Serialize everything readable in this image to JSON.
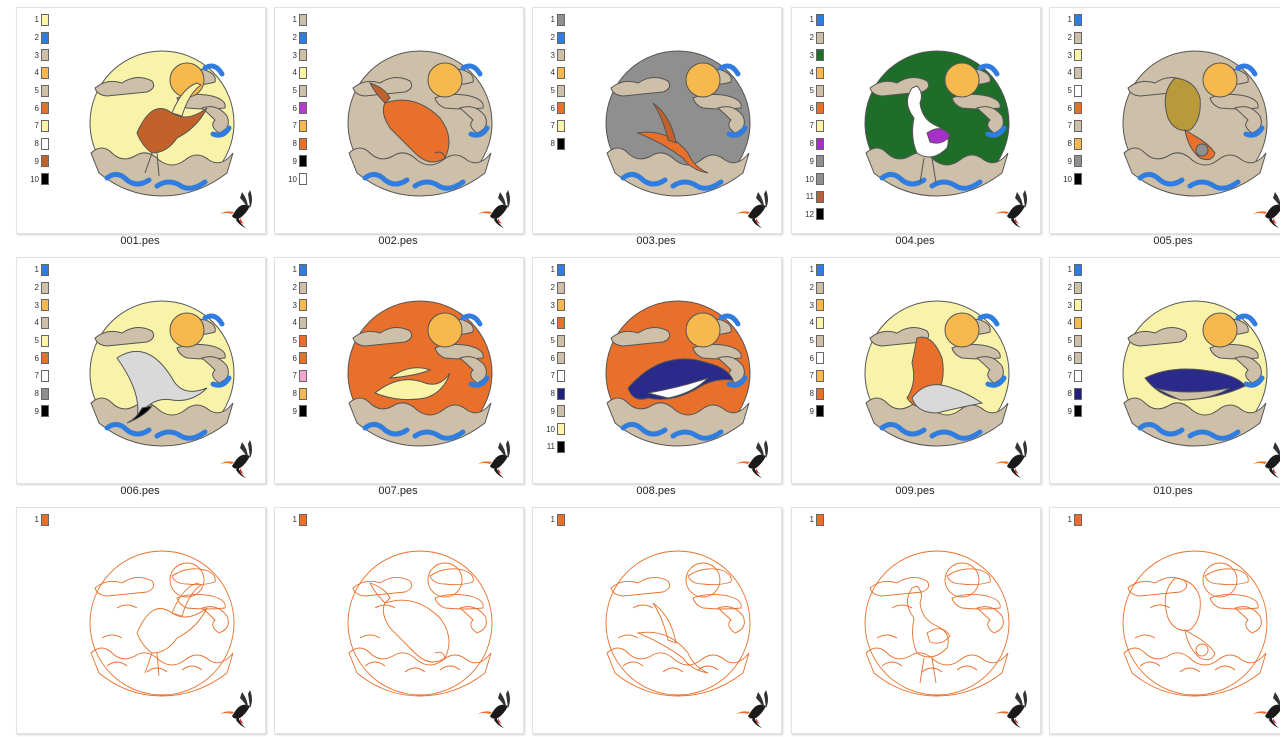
{
  "files": [
    {
      "name": "001.pes",
      "motif": "crane",
      "bg": "#f8f3a8",
      "outline": false,
      "palette": [
        {
          "n": "1",
          "c": "#fbf3a6"
        },
        {
          "n": "2",
          "c": "#2f7de0"
        },
        {
          "n": "3",
          "c": "#cdbfa8"
        },
        {
          "n": "4",
          "c": "#f7b94d"
        },
        {
          "n": "5",
          "c": "#cdbfa8"
        },
        {
          "n": "6",
          "c": "#e8702a"
        },
        {
          "n": "7",
          "c": "#fbf3a6"
        },
        {
          "n": "8",
          "c": "#ffffff"
        },
        {
          "n": "9",
          "c": "#c2612a"
        },
        {
          "n": "10",
          "c": "#000000"
        }
      ]
    },
    {
      "name": "002.pes",
      "motif": "koi",
      "bg": "#cdbfa8",
      "outline": false,
      "palette": [
        {
          "n": "1",
          "c": "#cdbfa8"
        },
        {
          "n": "2",
          "c": "#2f7de0"
        },
        {
          "n": "3",
          "c": "#cdbfa8"
        },
        {
          "n": "4",
          "c": "#fbf3a6"
        },
        {
          "n": "5",
          "c": "#cdbfa8"
        },
        {
          "n": "6",
          "c": "#b43bd6"
        },
        {
          "n": "7",
          "c": "#f7b94d"
        },
        {
          "n": "8",
          "c": "#e8702a"
        },
        {
          "n": "9",
          "c": "#000000"
        },
        {
          "n": "10",
          "c": "#ffffff"
        }
      ]
    },
    {
      "name": "003.pes",
      "motif": "swallow",
      "bg": "#8f8f8f",
      "outline": false,
      "palette": [
        {
          "n": "1",
          "c": "#8f8f8f"
        },
        {
          "n": "2",
          "c": "#2f7de0"
        },
        {
          "n": "3",
          "c": "#cdbfa8"
        },
        {
          "n": "4",
          "c": "#f7b94d"
        },
        {
          "n": "5",
          "c": "#cdbfa8"
        },
        {
          "n": "6",
          "c": "#e8702a"
        },
        {
          "n": "7",
          "c": "#fbf3a6"
        },
        {
          "n": "8",
          "c": "#000000"
        }
      ]
    },
    {
      "name": "004.pes",
      "motif": "heron",
      "bg": "#1e6e2a",
      "outline": false,
      "palette": [
        {
          "n": "1",
          "c": "#2f7de0"
        },
        {
          "n": "2",
          "c": "#cdbfa8"
        },
        {
          "n": "3",
          "c": "#1e6e2a"
        },
        {
          "n": "4",
          "c": "#f7b94d"
        },
        {
          "n": "5",
          "c": "#cdbfa8"
        },
        {
          "n": "6",
          "c": "#e8702a"
        },
        {
          "n": "7",
          "c": "#fbf3a6"
        },
        {
          "n": "8",
          "c": "#a72fc9"
        },
        {
          "n": "9",
          "c": "#8f8f8f"
        },
        {
          "n": "10",
          "c": "#8f8f8f"
        },
        {
          "n": "11",
          "c": "#b4643c"
        },
        {
          "n": "12",
          "c": "#000000"
        }
      ]
    },
    {
      "name": "005.pes",
      "motif": "goldfish",
      "bg": "#cdbfa8",
      "outline": false,
      "palette": [
        {
          "n": "1",
          "c": "#2f7de0"
        },
        {
          "n": "2",
          "c": "#cdbfa8"
        },
        {
          "n": "3",
          "c": "#fbf3a6"
        },
        {
          "n": "4",
          "c": "#cdbfa8"
        },
        {
          "n": "5",
          "c": "#ffffff"
        },
        {
          "n": "6",
          "c": "#e8702a"
        },
        {
          "n": "7",
          "c": "#cdbfa8"
        },
        {
          "n": "8",
          "c": "#f7b94d"
        },
        {
          "n": "9",
          "c": "#8f8f8f"
        },
        {
          "n": "10",
          "c": "#000000"
        }
      ]
    },
    {
      "name": "006.pes",
      "motif": "crane-flying",
      "bg": "#f8f3a8",
      "outline": false,
      "palette": [
        {
          "n": "1",
          "c": "#2f7de0"
        },
        {
          "n": "2",
          "c": "#cdbfa8"
        },
        {
          "n": "3",
          "c": "#f7b94d"
        },
        {
          "n": "4",
          "c": "#cdbfa8"
        },
        {
          "n": "5",
          "c": "#fbf3a6"
        },
        {
          "n": "6",
          "c": "#e8702a"
        },
        {
          "n": "7",
          "c": "#ffffff"
        },
        {
          "n": "8",
          "c": "#8f8f8f"
        },
        {
          "n": "9",
          "c": "#000000"
        }
      ]
    },
    {
      "name": "007.pes",
      "motif": "egrets",
      "bg": "#e8702a",
      "outline": false,
      "palette": [
        {
          "n": "1",
          "c": "#2f7de0"
        },
        {
          "n": "2",
          "c": "#cdbfa8"
        },
        {
          "n": "3",
          "c": "#f7b94d"
        },
        {
          "n": "4",
          "c": "#cdbfa8"
        },
        {
          "n": "5",
          "c": "#e8702a"
        },
        {
          "n": "6",
          "c": "#e8702a"
        },
        {
          "n": "7",
          "c": "#f6a3d0"
        },
        {
          "n": "8",
          "c": "#f7b94d"
        },
        {
          "n": "9",
          "c": "#000000"
        }
      ]
    },
    {
      "name": "008.pes",
      "motif": "dolphin",
      "bg": "#e8702a",
      "outline": false,
      "palette": [
        {
          "n": "1",
          "c": "#2f7de0"
        },
        {
          "n": "2",
          "c": "#cdbfa8"
        },
        {
          "n": "3",
          "c": "#f7b94d"
        },
        {
          "n": "4",
          "c": "#e8702a"
        },
        {
          "n": "5",
          "c": "#cdbfa8"
        },
        {
          "n": "6",
          "c": "#cdbfa8"
        },
        {
          "n": "7",
          "c": "#ffffff"
        },
        {
          "n": "8",
          "c": "#1f1f80"
        },
        {
          "n": "9",
          "c": "#cdbfa8"
        },
        {
          "n": "10",
          "c": "#fbf3a6"
        },
        {
          "n": "11",
          "c": "#000000"
        }
      ]
    },
    {
      "name": "009.pes",
      "motif": "pelican",
      "bg": "#f8f3a8",
      "outline": false,
      "palette": [
        {
          "n": "1",
          "c": "#2f7de0"
        },
        {
          "n": "2",
          "c": "#cdbfa8"
        },
        {
          "n": "3",
          "c": "#f7b94d"
        },
        {
          "n": "4",
          "c": "#fbf3a6"
        },
        {
          "n": "5",
          "c": "#cdbfa8"
        },
        {
          "n": "6",
          "c": "#ffffff"
        },
        {
          "n": "7",
          "c": "#f7b94d"
        },
        {
          "n": "8",
          "c": "#e8702a"
        },
        {
          "n": "9",
          "c": "#000000"
        }
      ]
    },
    {
      "name": "010.pes",
      "motif": "whale",
      "bg": "#f8f3a8",
      "outline": false,
      "palette": [
        {
          "n": "1",
          "c": "#2f7de0"
        },
        {
          "n": "2",
          "c": "#cdbfa8"
        },
        {
          "n": "3",
          "c": "#fbf3a6"
        },
        {
          "n": "4",
          "c": "#f7b94d"
        },
        {
          "n": "5",
          "c": "#cdbfa8"
        },
        {
          "n": "6",
          "c": "#cdbfa8"
        },
        {
          "n": "7",
          "c": "#ffffff"
        },
        {
          "n": "8",
          "c": "#1f1f80"
        },
        {
          "n": "9",
          "c": "#000000"
        }
      ]
    },
    {
      "name": "",
      "motif": "crane",
      "bg": "#ffffff",
      "outline": true,
      "palette": [
        {
          "n": "1",
          "c": "#e8702a"
        }
      ]
    },
    {
      "name": "",
      "motif": "koi",
      "bg": "#ffffff",
      "outline": true,
      "palette": [
        {
          "n": "1",
          "c": "#e8702a"
        }
      ]
    },
    {
      "name": "",
      "motif": "swallow",
      "bg": "#ffffff",
      "outline": true,
      "palette": [
        {
          "n": "1",
          "c": "#e8702a"
        }
      ]
    },
    {
      "name": "",
      "motif": "heron",
      "bg": "#ffffff",
      "outline": true,
      "palette": [
        {
          "n": "1",
          "c": "#e8702a"
        }
      ]
    },
    {
      "name": "",
      "motif": "goldfish",
      "bg": "#ffffff",
      "outline": true,
      "palette": [
        {
          "n": "1",
          "c": "#e8702a"
        }
      ]
    }
  ],
  "colors": {
    "sun": "#f7b94d",
    "wave": "#2f7de0",
    "cloud": "#cdbfa8",
    "outline": "#e8702a",
    "bird_icon": "hummingbird-logo-icon"
  }
}
